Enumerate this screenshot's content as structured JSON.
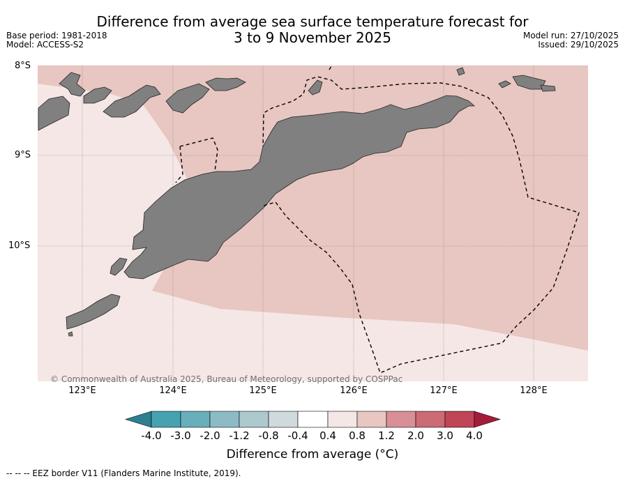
{
  "title_line1": "Difference from average sea surface temperature forecast for",
  "title_line2": "3 to 9 November 2025",
  "meta": {
    "base_period": "Base period: 1981-2018",
    "model": "Model: ACCESS-S2",
    "model_run": "Model run: 27/10/2025",
    "issued": "Issued: 29/10/2025"
  },
  "map": {
    "lat_labels": [
      "8°S",
      "9°S",
      "10°S"
    ],
    "lon_labels": [
      "123°E",
      "124°E",
      "125°E",
      "126°E",
      "127°E",
      "128°E"
    ],
    "copyright": "© Commonwealth of Australia 2025, Bureau of Meteorology, supported by COSPPac",
    "land_color": "#808080",
    "anomaly_fill_0.8_1.2": "#e8c6c1",
    "anomaly_fill_0.4_0.8": "#f5e7e5"
  },
  "colorbar": {
    "labels": [
      "-4.0",
      "-3.0",
      "-2.0",
      "-1.2",
      "-0.8",
      "-0.4",
      "0.4",
      "0.8",
      "1.2",
      "2.0",
      "3.0",
      "4.0"
    ],
    "colors": [
      "#2c8090",
      "#46a2b1",
      "#68aebb",
      "#8cbbc6",
      "#adc9ce",
      "#d0d9dc",
      "#ffffff",
      "#f5e7e5",
      "#e8c6c1",
      "#d88f96",
      "#cb6b75",
      "#c04556",
      "#a51c3a"
    ],
    "title": "Difference from average (°C)"
  },
  "legend_note": "--  --  -- EEZ border V11 (Flanders Marine Institute, 2019)."
}
